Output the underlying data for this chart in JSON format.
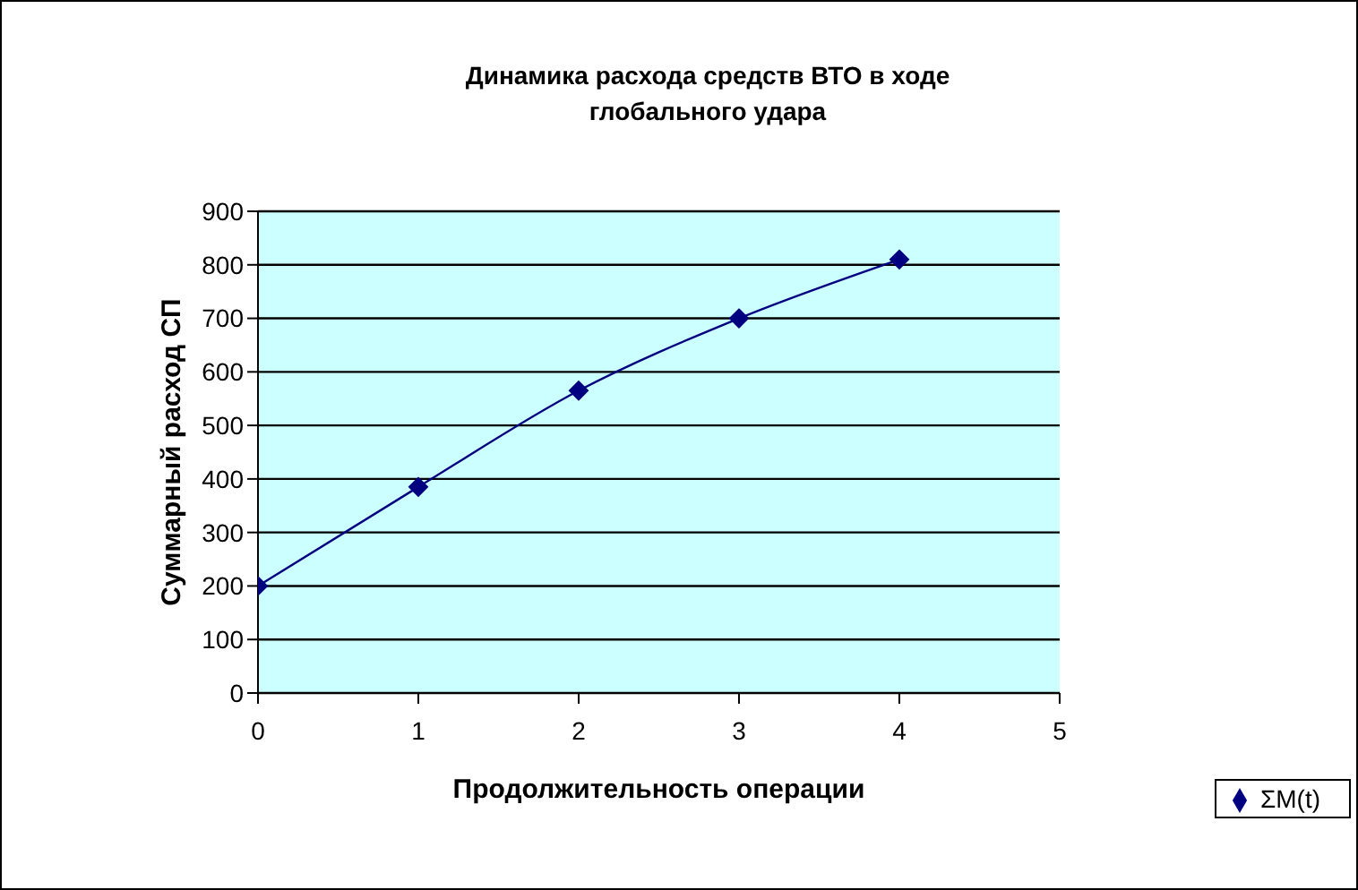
{
  "chart_data": {
    "type": "line",
    "title": "Динамика расхода средств ВТО в ходе глобального удара",
    "xlabel": "Продолжительность операции",
    "ylabel": "Суммарный расход СП",
    "x": [
      0,
      1,
      2,
      3,
      4
    ],
    "series": [
      {
        "name": "ΣM(t)",
        "color": "#000080",
        "values": [
          200,
          385,
          565,
          700,
          810
        ]
      }
    ],
    "xlim": [
      0,
      5
    ],
    "xticks": [
      0,
      1,
      2,
      3,
      4,
      5
    ],
    "ylim": [
      0,
      900
    ],
    "yticks": [
      0,
      100,
      200,
      300,
      400,
      500,
      600,
      700,
      800,
      900
    ],
    "grid": "y",
    "legend": "bottom right",
    "marker": "diamond",
    "line_style": "solid"
  }
}
